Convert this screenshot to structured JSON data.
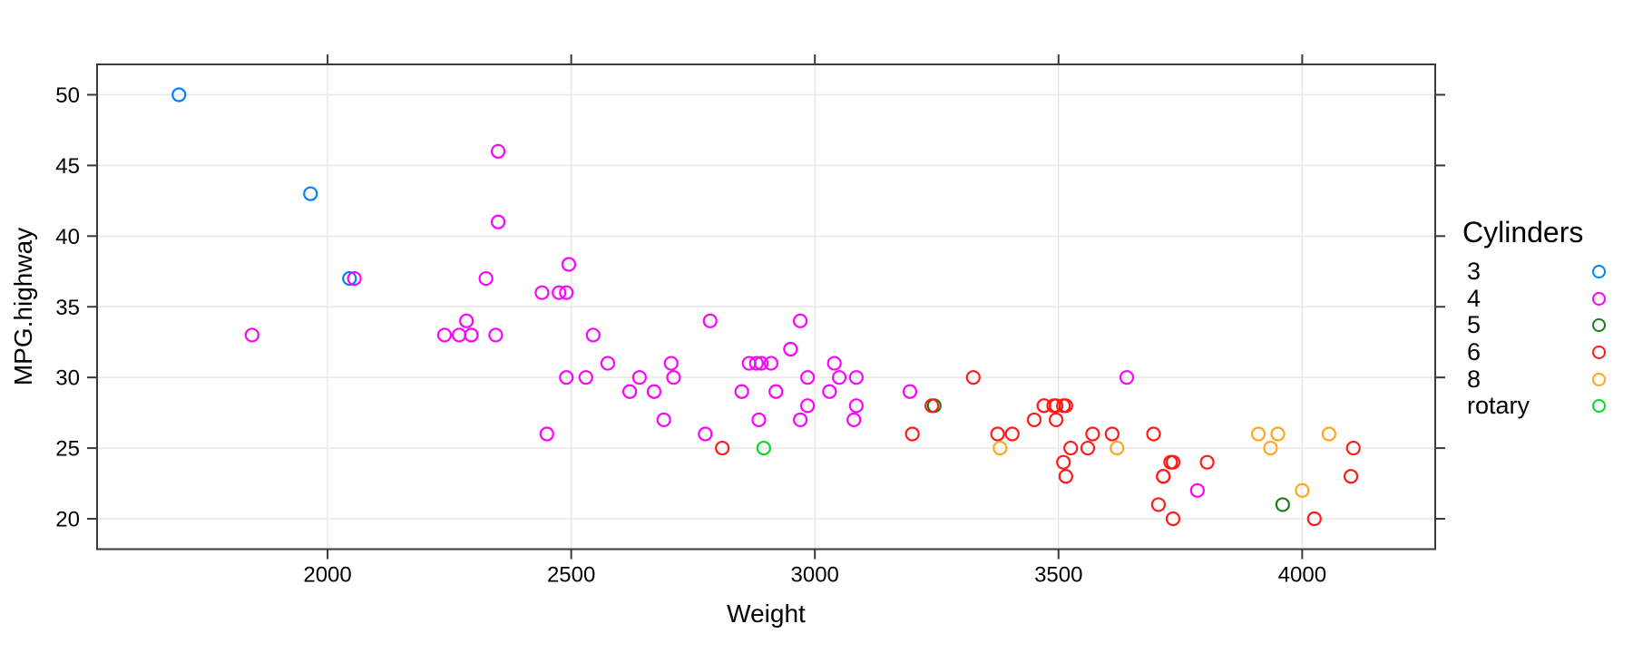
{
  "chart_data": {
    "type": "scatter",
    "title": "",
    "xlabel": "Weight",
    "ylabel": "MPG.highway",
    "xlim": [
      1527,
      4273
    ],
    "ylim": [
      17.85,
      52.15
    ],
    "xticks": [
      2000,
      2500,
      3000,
      3500,
      4000
    ],
    "yticks": [
      20,
      25,
      30,
      35,
      40,
      45,
      50
    ],
    "grid": true,
    "grid_color": "#E8E8E8",
    "axis_color": "#3A3A3A",
    "text_color": "#000000",
    "background": "#FFFFFF",
    "marker": "open-circle",
    "legend": {
      "title": "Cylinders",
      "position": "right"
    },
    "series": [
      {
        "name": "3",
        "color": "#0080FF",
        "points": [
          [
            1695,
            50
          ],
          [
            1965,
            43
          ],
          [
            2045,
            37
          ]
        ]
      },
      {
        "name": "4",
        "color": "#FF00FF",
        "points": [
          [
            1845,
            33
          ],
          [
            2055,
            37
          ],
          [
            2240,
            33
          ],
          [
            2270,
            33
          ],
          [
            2285,
            34
          ],
          [
            2295,
            33
          ],
          [
            2295,
            33
          ],
          [
            2325,
            37
          ],
          [
            2345,
            33
          ],
          [
            2350,
            46
          ],
          [
            2350,
            41
          ],
          [
            2440,
            36
          ],
          [
            2450,
            26
          ],
          [
            2475,
            36
          ],
          [
            2490,
            36
          ],
          [
            2490,
            30
          ],
          [
            2495,
            38
          ],
          [
            2530,
            30
          ],
          [
            2545,
            33
          ],
          [
            2575,
            31
          ],
          [
            2620,
            29
          ],
          [
            2640,
            30
          ],
          [
            2670,
            29
          ],
          [
            2690,
            27
          ],
          [
            2705,
            31
          ],
          [
            2710,
            30
          ],
          [
            2775,
            26
          ],
          [
            2785,
            34
          ],
          [
            2850,
            29
          ],
          [
            2865,
            31
          ],
          [
            2880,
            31
          ],
          [
            2885,
            27
          ],
          [
            2890,
            31
          ],
          [
            2910,
            31
          ],
          [
            2920,
            29
          ],
          [
            2950,
            32
          ],
          [
            2970,
            34
          ],
          [
            2970,
            27
          ],
          [
            2985,
            30
          ],
          [
            2985,
            28
          ],
          [
            3030,
            29
          ],
          [
            3040,
            31
          ],
          [
            3050,
            30
          ],
          [
            3080,
            27
          ],
          [
            3085,
            28
          ],
          [
            3085,
            30
          ],
          [
            3195,
            29
          ],
          [
            3640,
            30
          ],
          [
            3785,
            22
          ]
        ]
      },
      {
        "name": "5",
        "color": "#1B7A1B",
        "points": [
          [
            3245,
            28
          ],
          [
            3960,
            21
          ]
        ]
      },
      {
        "name": "6",
        "color": "#FF1A1A",
        "points": [
          [
            2810,
            25
          ],
          [
            3200,
            26
          ],
          [
            3240,
            28
          ],
          [
            3325,
            30
          ],
          [
            3375,
            26
          ],
          [
            3405,
            26
          ],
          [
            3450,
            27
          ],
          [
            3470,
            28
          ],
          [
            3470,
            28
          ],
          [
            3490,
            28
          ],
          [
            3495,
            28
          ],
          [
            3495,
            27
          ],
          [
            3510,
            28
          ],
          [
            3510,
            24
          ],
          [
            3515,
            28
          ],
          [
            3515,
            23
          ],
          [
            3525,
            25
          ],
          [
            3560,
            25
          ],
          [
            3570,
            26
          ],
          [
            3610,
            26
          ],
          [
            3695,
            26
          ],
          [
            3705,
            21
          ],
          [
            3715,
            23
          ],
          [
            3715,
            23
          ],
          [
            3730,
            24
          ],
          [
            3735,
            24
          ],
          [
            3735,
            20
          ],
          [
            3805,
            24
          ],
          [
            4025,
            20
          ],
          [
            4100,
            23
          ],
          [
            4105,
            25
          ]
        ]
      },
      {
        "name": "8",
        "color": "#FFA51E",
        "points": [
          [
            3380,
            25
          ],
          [
            3620,
            25
          ],
          [
            3910,
            26
          ],
          [
            3935,
            25
          ],
          [
            3950,
            26
          ],
          [
            4000,
            22
          ],
          [
            4055,
            26
          ]
        ]
      },
      {
        "name": "rotary",
        "color": "#00DD22",
        "points": [
          [
            2895,
            25
          ]
        ]
      }
    ]
  }
}
